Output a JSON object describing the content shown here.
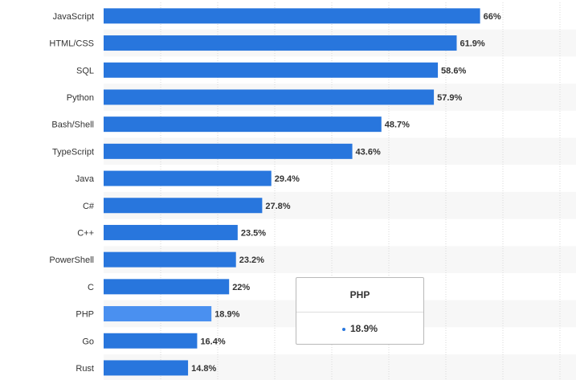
{
  "chart_data": {
    "type": "bar",
    "orientation": "horizontal",
    "categories": [
      "JavaScript",
      "HTML/CSS",
      "SQL",
      "Python",
      "Bash/Shell",
      "TypeScript",
      "Java",
      "C#",
      "C++",
      "PowerShell",
      "C",
      "PHP",
      "Go",
      "Rust"
    ],
    "values": [
      66,
      61.9,
      58.6,
      57.9,
      48.7,
      43.6,
      29.4,
      27.8,
      23.5,
      23.2,
      22,
      18.9,
      16.4,
      14.8
    ],
    "value_labels": [
      "66%",
      "61.9%",
      "58.6%",
      "57.9%",
      "48.7%",
      "43.6%",
      "29.4%",
      "27.8%",
      "23.5%",
      "23.2%",
      "22%",
      "18.9%",
      "16.4%",
      "14.8%"
    ],
    "highlighted_category": "PHP",
    "xlim": [
      0,
      80
    ],
    "grid": true,
    "colors": {
      "bar": "#2876dd",
      "highlight": "#4a90f0",
      "row_alt": "#f7f7f7",
      "grid": "#d9d9d9"
    }
  },
  "tooltip": {
    "title": "PHP",
    "value": "18.9%"
  }
}
